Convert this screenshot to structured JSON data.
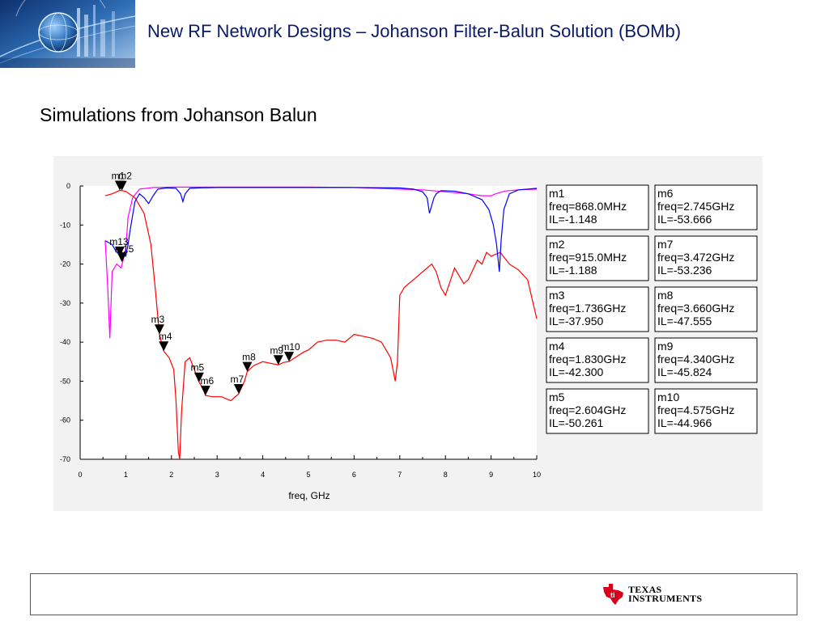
{
  "header": {
    "title": "New RF Network Designs – Johanson Filter-Balun Solution (BOMb)"
  },
  "subtitle": "Simulations from Johanson Balun",
  "footer": {
    "company_line1": "Texas",
    "company_line2": "Instruments"
  },
  "chart_data": {
    "type": "line",
    "xlabel": "freq, GHz",
    "ylabel": "",
    "xlim": [
      0,
      10
    ],
    "ylim": [
      -70,
      0
    ],
    "x_ticks": [
      0,
      1,
      2,
      3,
      4,
      5,
      6,
      7,
      8,
      9,
      10
    ],
    "y_ticks": [
      0,
      -10,
      -20,
      -30,
      -40,
      -50,
      -60,
      -70
    ],
    "grid": false,
    "series": [
      {
        "color": "#ff0000",
        "x": [
          0.55,
          0.7,
          0.868,
          0.915,
          1.0,
          1.2,
          1.4,
          1.55,
          1.65,
          1.736,
          1.83,
          1.95,
          2.05,
          2.1,
          2.15,
          2.18,
          2.22,
          2.3,
          2.4,
          2.5,
          2.604,
          2.7,
          2.745,
          2.9,
          3.1,
          3.3,
          3.472,
          3.6,
          3.66,
          3.8,
          4.0,
          4.2,
          4.34,
          4.45,
          4.575,
          4.7,
          4.9,
          5.0,
          5.2,
          5.4,
          5.6,
          5.8,
          6.0,
          6.2,
          6.4,
          6.6,
          6.8,
          6.9,
          6.95,
          7.0,
          7.1,
          7.3,
          7.5,
          7.7,
          7.8,
          7.9,
          8.0,
          8.2,
          8.4,
          8.5,
          8.7,
          8.8,
          8.9,
          9.0,
          9.2,
          9.4,
          9.6,
          9.8,
          10.0
        ],
        "y": [
          -2.5,
          -2.0,
          -1.148,
          -1.188,
          -1.4,
          -3.0,
          -7.0,
          -15.0,
          -27.0,
          -37.95,
          -42.3,
          -44.0,
          -47.0,
          -55.0,
          -68.0,
          -70.0,
          -58.0,
          -45.0,
          -44.0,
          -47.0,
          -50.261,
          -52.0,
          -53.666,
          -54.0,
          -54.0,
          -55.0,
          -53.236,
          -50.0,
          -47.555,
          -46.0,
          -45.0,
          -45.5,
          -45.824,
          -45.2,
          -44.966,
          -44.0,
          -42.5,
          -42.0,
          -40.0,
          -39.5,
          -39.5,
          -40.0,
          -38.0,
          -38.5,
          -39.0,
          -40.0,
          -44.0,
          -50.0,
          -45.0,
          -28.0,
          -26.0,
          -24.0,
          -22.0,
          -20.0,
          -22.0,
          -26.0,
          -28.0,
          -21.0,
          -25.0,
          -24.0,
          -19.0,
          -20.0,
          -17.0,
          -18.0,
          -17.0,
          -20.0,
          -21.5,
          -24.0,
          -34.0
        ]
      },
      {
        "color": "#ff00ff",
        "x": [
          0.55,
          0.6,
          0.65,
          0.7,
          0.8,
          0.9,
          1.0,
          1.05,
          1.15,
          1.3,
          1.6,
          2.0,
          3.0,
          4.0,
          5.0,
          6.0,
          6.5,
          7.0,
          7.5,
          8.0,
          8.5,
          8.8,
          9.0,
          9.1,
          9.3,
          9.6,
          10.0
        ],
        "y": [
          -14.0,
          -25.0,
          -39.0,
          -22.0,
          -20.0,
          -21.0,
          -16.0,
          -8.0,
          -3.0,
          -0.8,
          -0.4,
          -0.3,
          -0.3,
          -0.3,
          -0.3,
          -0.4,
          -0.6,
          -0.8,
          -1.0,
          -1.5,
          -2.0,
          -2.5,
          -2.5,
          -2.0,
          -1.3,
          -1.0,
          -0.8
        ]
      },
      {
        "color": "#0000ff",
        "x": [
          0.55,
          0.7,
          0.8,
          0.9,
          1.0,
          1.05,
          1.1,
          1.2,
          1.3,
          1.4,
          1.5,
          1.6,
          1.7,
          1.9,
          2.1,
          2.2,
          2.25,
          2.3,
          2.4,
          2.6,
          3.0,
          4.0,
          5.0,
          6.0,
          7.0,
          7.3,
          7.5,
          7.6,
          7.65,
          7.7,
          7.75,
          7.8,
          7.9,
          8.2,
          8.5,
          8.8,
          8.95,
          9.05,
          9.12,
          9.18,
          9.22,
          9.28,
          9.4,
          9.6,
          10.0
        ],
        "y": [
          -14.0,
          -15.0,
          -17.0,
          -17.0,
          -18.0,
          -15.0,
          -11.0,
          -4.0,
          -2.0,
          -3.0,
          -4.5,
          -2.5,
          -0.8,
          -0.5,
          -0.6,
          -2.0,
          -4.0,
          -2.0,
          -0.6,
          -0.5,
          -0.4,
          -0.4,
          -0.4,
          -0.4,
          -0.5,
          -0.8,
          -1.5,
          -3.0,
          -7.0,
          -5.0,
          -3.0,
          -2.0,
          -1.2,
          -1.3,
          -2.0,
          -3.5,
          -6.0,
          -10.0,
          -15.0,
          -22.0,
          -14.0,
          -6.0,
          -2.0,
          -1.0,
          -0.6
        ]
      }
    ],
    "markers": [
      {
        "name": "m1",
        "freq": "freq=868.0MHz",
        "il": "IL=-1.148",
        "x": 0.868,
        "y": -1.148
      },
      {
        "name": "m2",
        "freq": "freq=915.0MHz",
        "il": "IL=-1.188",
        "x": 0.915,
        "y": -1.188
      },
      {
        "name": "m3",
        "freq": "freq=1.736GHz",
        "il": "IL=-37.950",
        "x": 1.736,
        "y": -37.95
      },
      {
        "name": "m4",
        "freq": "freq=1.830GHz",
        "il": "IL=-42.300",
        "x": 1.83,
        "y": -42.3
      },
      {
        "name": "m5",
        "freq": "freq=2.604GHz",
        "il": "IL=-50.261",
        "x": 2.604,
        "y": -50.261
      },
      {
        "name": "m6",
        "freq": "freq=2.745GHz",
        "il": "IL=-53.666",
        "x": 2.745,
        "y": -53.666
      },
      {
        "name": "m7",
        "freq": "freq=3.472GHz",
        "il": "IL=-53.236",
        "x": 3.472,
        "y": -53.236
      },
      {
        "name": "m8",
        "freq": "freq=3.660GHz",
        "il": "IL=-47.555",
        "x": 3.66,
        "y": -47.555
      },
      {
        "name": "m9",
        "freq": "freq=4.340GHz",
        "il": "IL=-45.824",
        "x": 4.34,
        "y": -45.824
      },
      {
        "name": "m10",
        "freq": "freq=4.575GHz",
        "il": "IL=-44.966",
        "x": 4.575,
        "y": -44.966
      }
    ],
    "extra_markers": [
      {
        "name": "m13",
        "x": 0.868,
        "y": -18.0
      },
      {
        "name": "m15",
        "x": 0.915,
        "y": -19.5
      }
    ]
  }
}
